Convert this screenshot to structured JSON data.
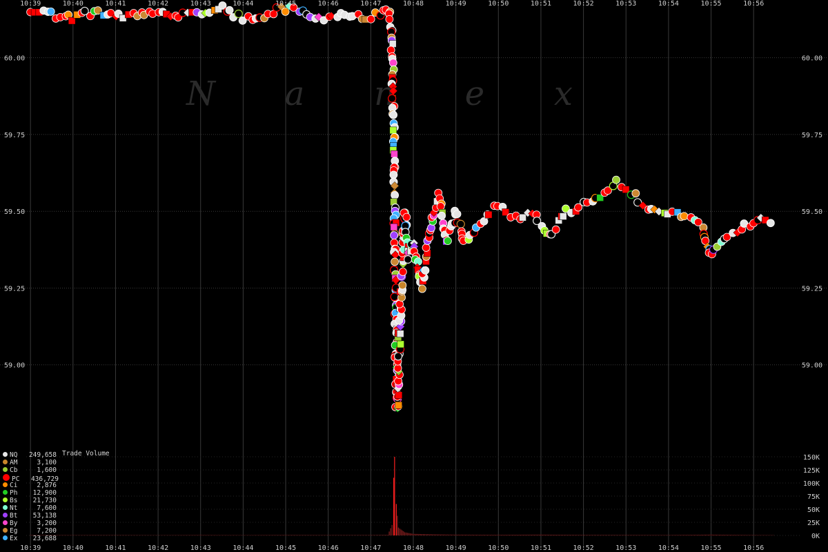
{
  "chart_data": {
    "type": "scatter",
    "watermark": "N a n e x",
    "x_ticks": [
      "10:39",
      "10:40",
      "10:41",
      "10:42",
      "10:43",
      "10:44",
      "10:45",
      "10:46",
      "10:47",
      "10:48",
      "10:49",
      "10:50",
      "10:51",
      "10:52",
      "10:53",
      "10:54",
      "10:55",
      "10:56"
    ],
    "x_range_minutes": [
      38.9,
      57.1
    ],
    "price_axis": {
      "ticks": [
        "60.00",
        "59.75",
        "59.50",
        "59.25",
        "59.00"
      ],
      "tick_values": [
        60.0,
        59.75,
        59.5,
        59.25,
        59.0
      ],
      "range": [
        58.75,
        60.17
      ]
    },
    "volume_axis": {
      "label": "Trade Volume",
      "ticks": [
        "150K",
        "125K",
        "100K",
        "75K",
        "50K",
        "25K",
        "0K"
      ],
      "tick_values": [
        150000,
        125000,
        100000,
        75000,
        50000,
        25000,
        0
      ],
      "range": [
        0,
        150000
      ]
    },
    "exchanges": [
      {
        "code": "NQ",
        "volume": "249,658",
        "color": "#e6e6e6"
      },
      {
        "code": "AM",
        "volume": "3,100",
        "color": "#c8862a"
      },
      {
        "code": "Cb",
        "volume": "1,600",
        "color": "#9acd32"
      },
      {
        "code": "PC",
        "volume": "436,729",
        "color": "#ff0000"
      },
      {
        "code": "Ci",
        "volume": "2,876",
        "color": "#ff8c00"
      },
      {
        "code": "Ph",
        "volume": "12,900",
        "color": "#22cc22"
      },
      {
        "code": "Bs",
        "volume": "21,730",
        "color": "#adff2f"
      },
      {
        "code": "Nt",
        "volume": "7,600",
        "color": "#7fffd4"
      },
      {
        "code": "Bt",
        "volume": "53,138",
        "color": "#a040ff"
      },
      {
        "code": "By",
        "volume": "3,200",
        "color": "#ff44cc"
      },
      {
        "code": "Eg",
        "volume": "7,200",
        "color": "#cc8833"
      },
      {
        "code": "Ex",
        "volume": "23,688",
        "color": "#40b0ff"
      }
    ],
    "price_path": [
      [
        39.0,
        60.15
      ],
      [
        39.5,
        60.14
      ],
      [
        40.0,
        60.13
      ],
      [
        40.5,
        60.15
      ],
      [
        41.0,
        60.14
      ],
      [
        41.5,
        60.14
      ],
      [
        42.0,
        60.14
      ],
      [
        42.5,
        60.14
      ],
      [
        43.0,
        60.15
      ],
      [
        43.5,
        60.16
      ],
      [
        44.0,
        60.13
      ],
      [
        44.4,
        60.12
      ],
      [
        44.8,
        60.16
      ],
      [
        45.2,
        60.16
      ],
      [
        45.6,
        60.13
      ],
      [
        46.0,
        60.13
      ],
      [
        46.4,
        60.14
      ],
      [
        46.8,
        60.13
      ],
      [
        47.2,
        60.14
      ],
      [
        47.45,
        60.15
      ],
      [
        47.5,
        60.05
      ],
      [
        47.52,
        59.9
      ],
      [
        47.54,
        59.75
      ],
      [
        47.56,
        59.6
      ],
      [
        47.57,
        59.4
      ],
      [
        47.58,
        59.2
      ],
      [
        47.59,
        59.0
      ],
      [
        47.6,
        58.88
      ],
      [
        47.62,
        58.85
      ],
      [
        47.7,
        59.2
      ],
      [
        47.8,
        59.5
      ],
      [
        47.9,
        59.35
      ],
      [
        48.0,
        59.4
      ],
      [
        48.2,
        59.25
      ],
      [
        48.4,
        59.45
      ],
      [
        48.6,
        59.55
      ],
      [
        48.8,
        59.4
      ],
      [
        49.0,
        59.5
      ],
      [
        49.2,
        59.4
      ],
      [
        49.5,
        59.45
      ],
      [
        49.8,
        59.5
      ],
      [
        50.0,
        59.52
      ],
      [
        50.4,
        59.48
      ],
      [
        50.8,
        59.5
      ],
      [
        51.2,
        59.42
      ],
      [
        51.6,
        59.5
      ],
      [
        52.0,
        59.52
      ],
      [
        52.4,
        59.55
      ],
      [
        52.8,
        59.6
      ],
      [
        53.2,
        59.55
      ],
      [
        53.6,
        59.5
      ],
      [
        54.0,
        59.5
      ],
      [
        54.4,
        59.48
      ],
      [
        54.8,
        59.45
      ],
      [
        55.0,
        59.35
      ],
      [
        55.4,
        59.42
      ],
      [
        55.8,
        59.45
      ],
      [
        56.2,
        59.47
      ],
      [
        56.5,
        59.46
      ]
    ],
    "volume_path": [
      [
        39.0,
        800
      ],
      [
        40.0,
        600
      ],
      [
        41.0,
        700
      ],
      [
        42.0,
        500
      ],
      [
        43.0,
        800
      ],
      [
        44.0,
        600
      ],
      [
        45.0,
        900
      ],
      [
        46.0,
        700
      ],
      [
        47.0,
        800
      ],
      [
        47.4,
        1200
      ],
      [
        47.5,
        20000
      ],
      [
        47.54,
        110000
      ],
      [
        47.56,
        150000
      ],
      [
        47.6,
        60000
      ],
      [
        47.65,
        15000
      ],
      [
        47.8,
        6000
      ],
      [
        48.0,
        3000
      ],
      [
        48.5,
        2000
      ],
      [
        49.0,
        1500
      ],
      [
        50.0,
        1200
      ],
      [
        51.0,
        1500
      ],
      [
        52.0,
        1000
      ],
      [
        53.0,
        900
      ],
      [
        54.0,
        800
      ],
      [
        55.0,
        1500
      ],
      [
        56.0,
        800
      ],
      [
        56.5,
        600
      ]
    ]
  }
}
